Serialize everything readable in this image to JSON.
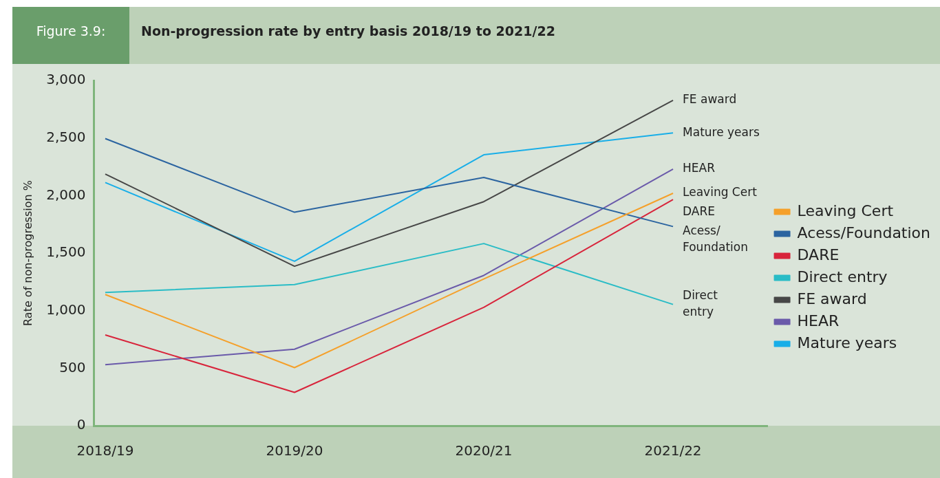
{
  "chart_data": {
    "type": "line",
    "title": "Non-progression rate by entry basis 2018/19 to 2021/22",
    "ylabel": "Rate of non-progression %",
    "categories": [
      "2018/19",
      "2019/20",
      "2020/21",
      "2021/22"
    ],
    "series": [
      {
        "name": "Leaving Cert",
        "color": "#f5a02a",
        "values": [
          1140,
          505,
          1275,
          2020
        ]
      },
      {
        "name": "Acess/Foundation",
        "color": "#2b64a0",
        "values": [
          2495,
          1855,
          2157,
          1731
        ]
      },
      {
        "name": "DARE",
        "color": "#d8243b",
        "values": [
          789,
          290,
          1029,
          1966
        ]
      },
      {
        "name": "Direct entry",
        "color": "#29bcc6",
        "values": [
          1158,
          1226,
          1583,
          1054
        ]
      },
      {
        "name": "FE award",
        "color": "#474747",
        "values": [
          2187,
          1386,
          1947,
          2828
        ]
      },
      {
        "name": "HEAR",
        "color": "#6a5aaa",
        "values": [
          530,
          665,
          1306,
          2230
        ]
      },
      {
        "name": "Mature years",
        "color": "#18aee8",
        "values": [
          2113,
          1429,
          2354,
          2545
        ]
      }
    ],
    "ylim": [
      0,
      3000
    ],
    "yticks": [
      {
        "value": 0,
        "label": "0"
      },
      {
        "value": 500,
        "label": "500"
      },
      {
        "value": 1000,
        "label": "1,000"
      },
      {
        "value": 1500,
        "label": "1,500"
      },
      {
        "value": 2000,
        "label": "2,000"
      },
      {
        "value": 2500,
        "label": "2,500"
      },
      {
        "value": 3000,
        "label": "3,000"
      }
    ],
    "grid": false,
    "legend": "right",
    "marker": "none",
    "line_style": "solid",
    "annotations": [
      "Figure 3.9:",
      {
        "text": "FE award",
        "x": "2021/22",
        "y": 2828
      },
      {
        "text": "Mature years",
        "x": "2021/22",
        "y": 2545
      },
      {
        "text": "HEAR",
        "x": "2021/22",
        "y": 2230
      },
      {
        "text": "Leaving Cert",
        "x": "2021/22",
        "y": 2020
      },
      {
        "text": "DARE",
        "x": "2021/22",
        "y": 1966
      },
      {
        "text": "Acess/\nFoundation",
        "x": "2021/22",
        "y": 1731
      },
      {
        "text": "Direct\nentry",
        "x": "2021/22",
        "y": 1054
      }
    ]
  }
}
